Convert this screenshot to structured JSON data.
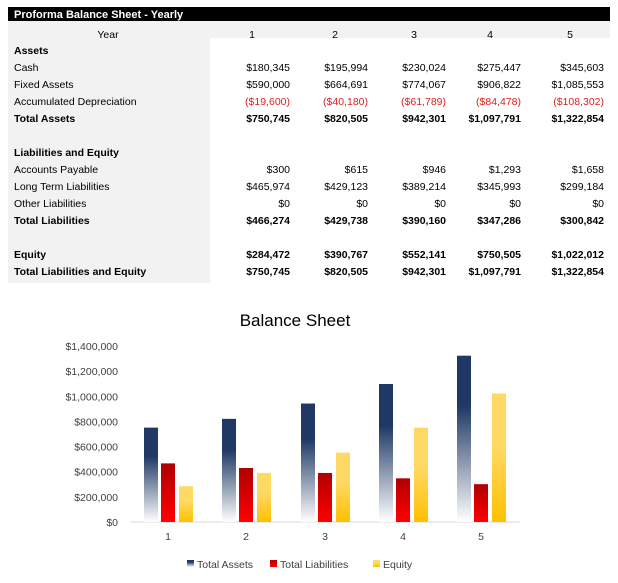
{
  "table": {
    "title": "Proforma Balance Sheet - Yearly",
    "year_label": "Year",
    "years": [
      "1",
      "2",
      "3",
      "4",
      "5"
    ],
    "rows": [
      {
        "label": "Assets",
        "bold": true,
        "values": []
      },
      {
        "label": "Cash",
        "values": [
          "$180,345",
          "$195,994",
          "$230,024",
          "$275,447",
          "$345,603"
        ]
      },
      {
        "label": "Fixed Assets",
        "values": [
          "$590,000",
          "$664,691",
          "$774,067",
          "$906,822",
          "$1,085,553"
        ]
      },
      {
        "label": "Accumulated Depreciation",
        "negative": true,
        "values": [
          "($19,600)",
          "($40,180)",
          "($61,789)",
          "($84,478)",
          "($108,302)"
        ]
      },
      {
        "label": "Total Assets",
        "bold": true,
        "values": [
          "$750,745",
          "$820,505",
          "$942,301",
          "$1,097,791",
          "$1,322,854"
        ]
      },
      {
        "label": "",
        "values": []
      },
      {
        "label": "Liabilities and Equity",
        "bold": true,
        "values": []
      },
      {
        "label": "Accounts Payable",
        "values": [
          "$300",
          "$615",
          "$946",
          "$1,293",
          "$1,658"
        ]
      },
      {
        "label": "Long Term Liabilities",
        "values": [
          "$465,974",
          "$429,123",
          "$389,214",
          "$345,993",
          "$299,184"
        ]
      },
      {
        "label": "Other Liabilities",
        "values": [
          "$0",
          "$0",
          "$0",
          "$0",
          "$0"
        ]
      },
      {
        "label": "Total Liabilities",
        "bold": true,
        "values": [
          "$466,274",
          "$429,738",
          "$390,160",
          "$347,286",
          "$300,842"
        ]
      },
      {
        "label": "",
        "values": []
      },
      {
        "label": "Equity",
        "bold": true,
        "values": [
          "$284,472",
          "$390,767",
          "$552,141",
          "$750,505",
          "$1,022,012"
        ]
      },
      {
        "label": "Total Liabilities and Equity",
        "bold": true,
        "values": [
          "$750,745",
          "$820,505",
          "$942,301",
          "$1,097,791",
          "$1,322,854"
        ]
      }
    ],
    "negative_color": "#e02020"
  },
  "chart_data": {
    "type": "bar",
    "title": "Balance Sheet",
    "categories": [
      "1",
      "2",
      "3",
      "4",
      "5"
    ],
    "series": [
      {
        "name": "Total Assets",
        "values": [
          750745,
          820505,
          942301,
          1097791,
          1322854
        ],
        "color": "#1f3864"
      },
      {
        "name": "Total Liabilities",
        "values": [
          466274,
          429738,
          390160,
          347286,
          300842
        ],
        "color": "#c00000"
      },
      {
        "name": "Equity",
        "values": [
          284472,
          390767,
          552141,
          750505,
          1022012
        ],
        "color": "#ffc000"
      }
    ],
    "ylim": [
      0,
      1400000
    ],
    "yticks": [
      "$0",
      "$200,000",
      "$400,000",
      "$600,000",
      "$800,000",
      "$1,000,000",
      "$1,200,000",
      "$1,400,000"
    ],
    "grid": false,
    "legend": "bottom"
  }
}
